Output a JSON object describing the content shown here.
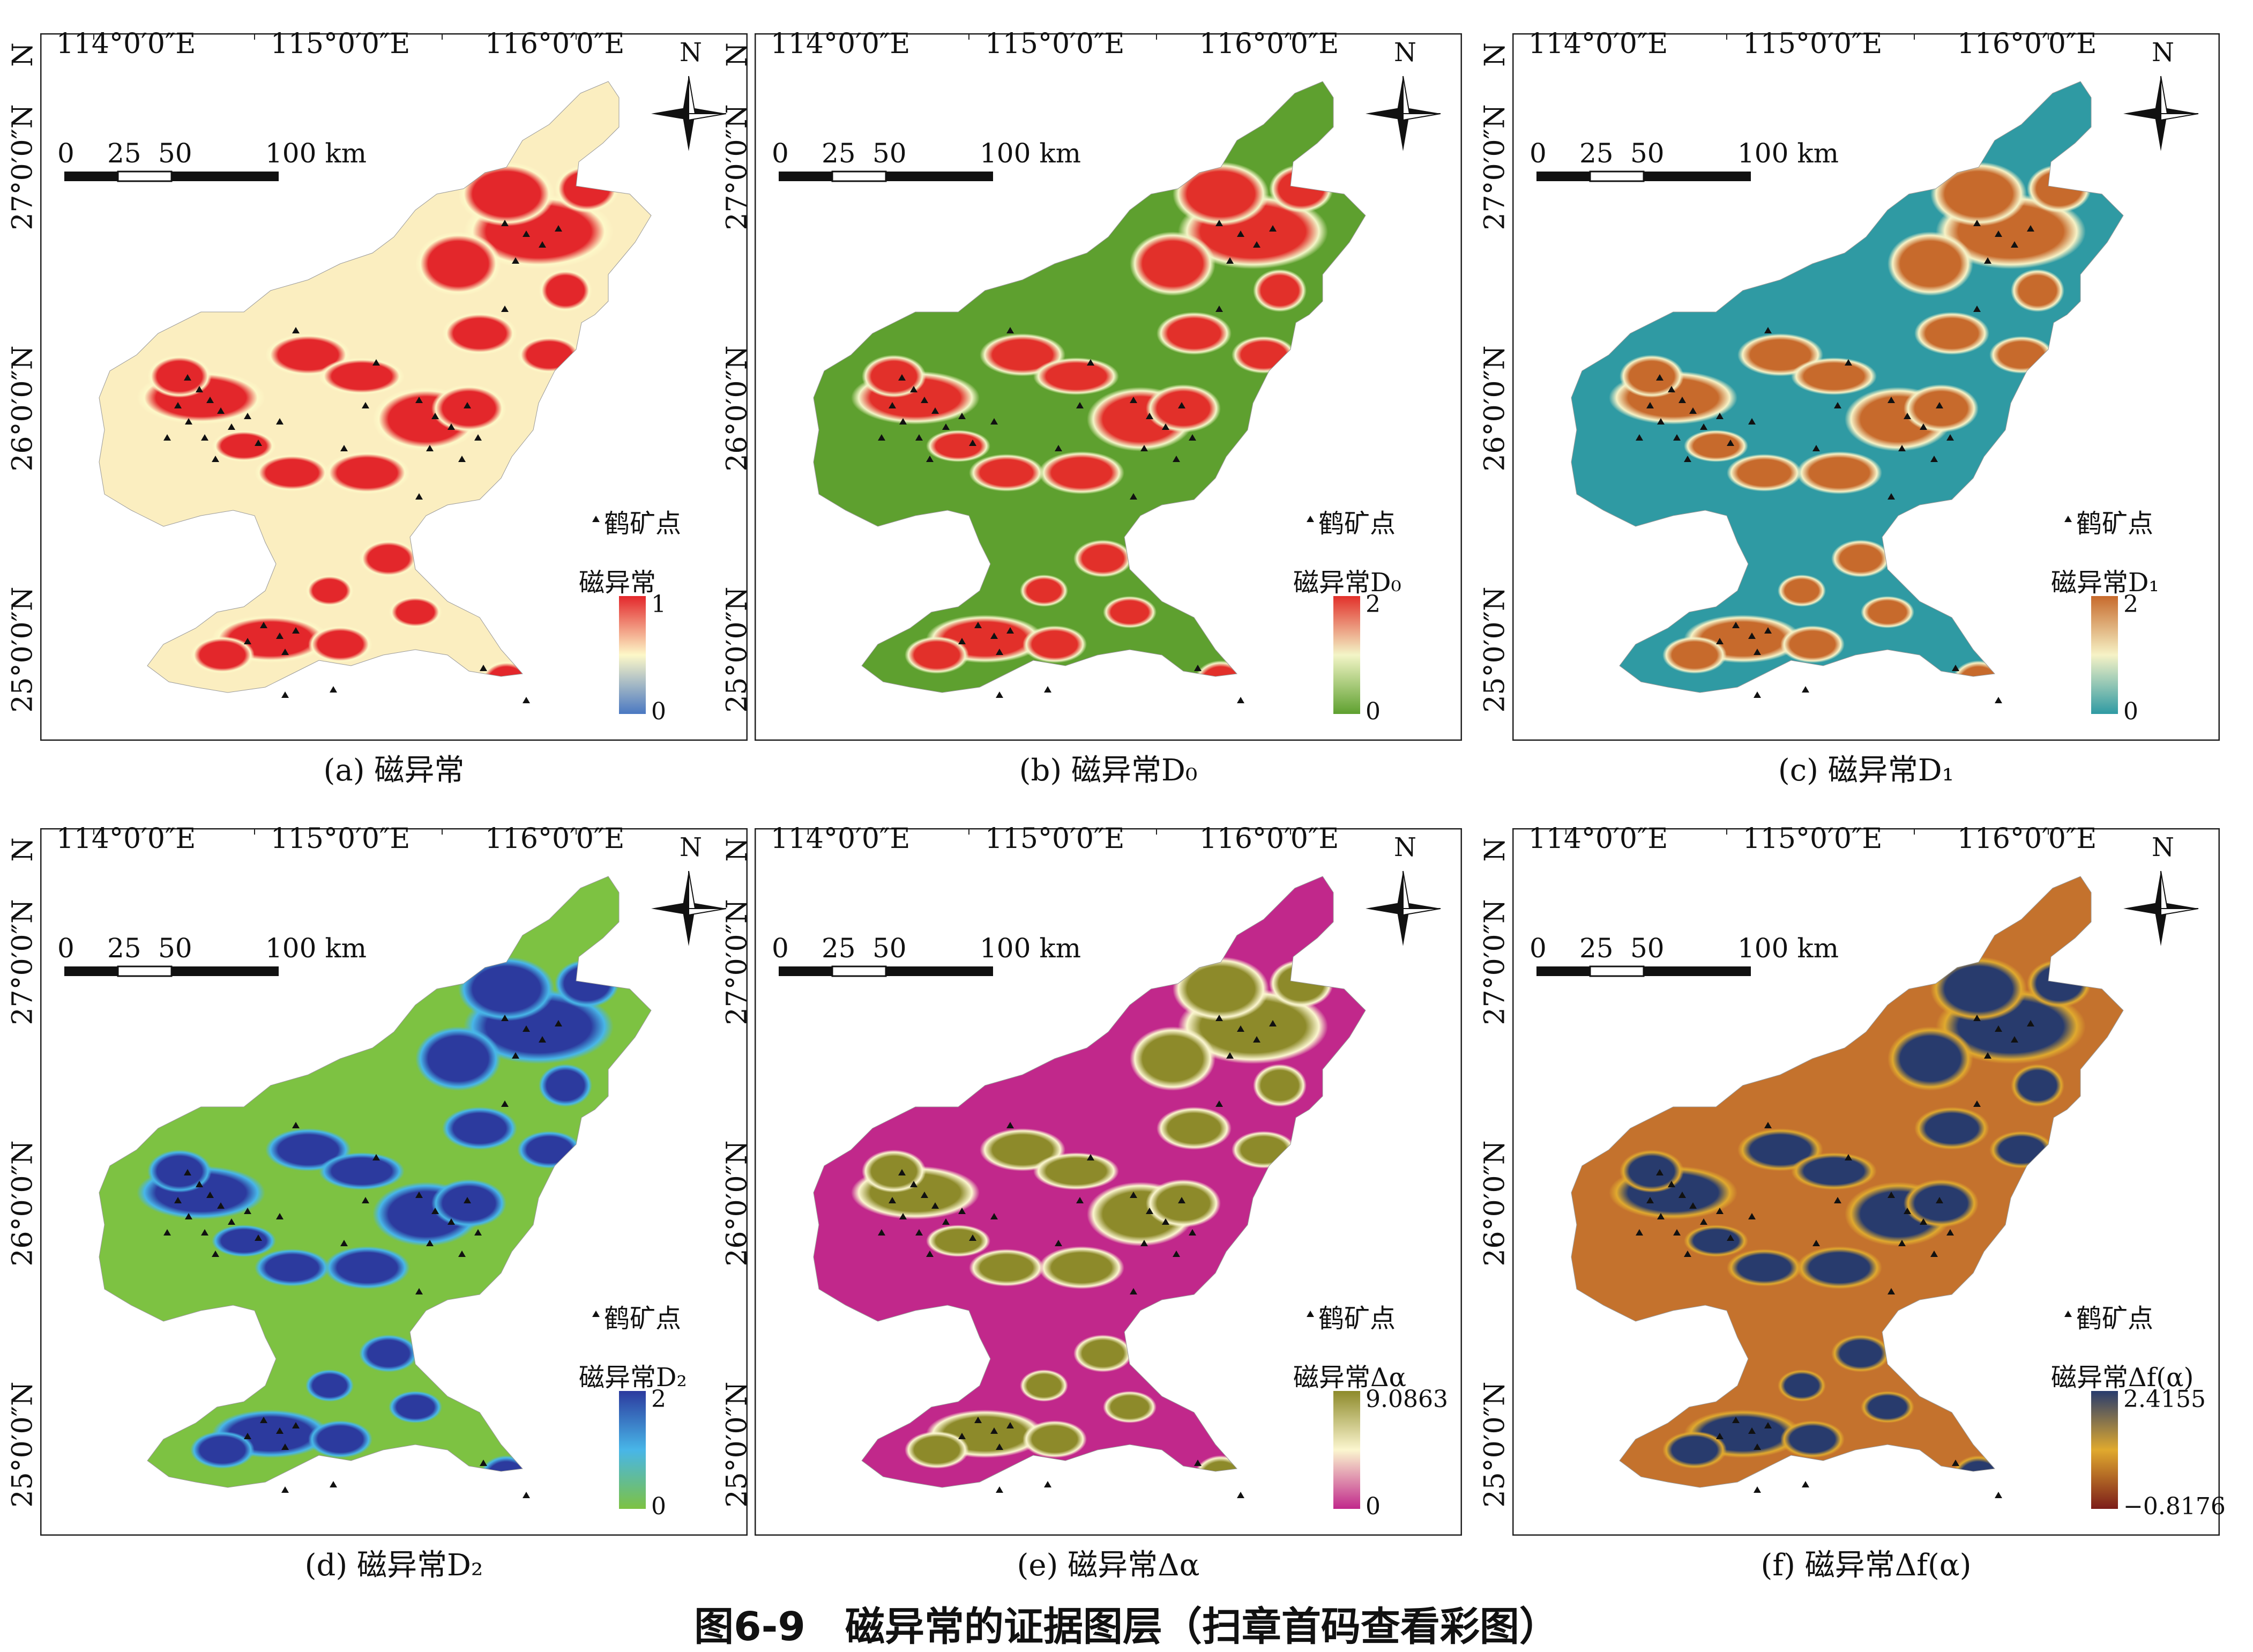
{
  "figure_title": "图6-9　磁异常的证据图层（扫章首码查看彩图）",
  "axes": {
    "lon_labels": [
      "114°0′0″E",
      "115°0′0″E",
      "116°0′0″E"
    ],
    "lat_labels": [
      "27°0′0″N",
      "26°0′0″N",
      "25°0′0″N"
    ],
    "lat_top_label": "N"
  },
  "scale_bar": {
    "labels": [
      "0",
      "25",
      "50",
      "100 km"
    ]
  },
  "north_label": "N",
  "mine_legend": "鹤矿点",
  "panels": [
    {
      "id": "a",
      "caption": "(a) 磁异常",
      "legend_title": "磁异常",
      "max": "1",
      "min": "0",
      "colors": {
        "low": "#4a78c2",
        "mid": "#fdf8c8",
        "high": "#e3272b",
        "base": "#fbeec0"
      }
    },
    {
      "id": "b",
      "caption": "(b) 磁异常D₀",
      "legend_title": "磁异常D₀",
      "max": "2",
      "min": "0",
      "colors": {
        "low": "#5ea02f",
        "mid": "#f3f5c7",
        "high": "#e2302a",
        "base": "#5ea02f"
      }
    },
    {
      "id": "c",
      "caption": "(c) 磁异常D₁",
      "legend_title": "磁异常D₁",
      "max": "2",
      "min": "0",
      "colors": {
        "low": "#2f9aa3",
        "mid": "#f6f2c6",
        "high": "#c76a2c",
        "base": "#2f9aa3"
      }
    },
    {
      "id": "d",
      "caption": "(d) 磁异常D₂",
      "legend_title": "磁异常D₂",
      "max": "2",
      "min": "0",
      "colors": {
        "low": "#7dc242",
        "mid": "#48b6e8",
        "high": "#2c3a9e",
        "base": "#7dc242"
      }
    },
    {
      "id": "e",
      "caption": "(e) 磁异常Δα",
      "legend_title": "磁异常Δα",
      "max": "9.0863",
      "min": "0",
      "colors": {
        "low": "#c1288b",
        "mid": "#fbf6cf",
        "high": "#8d8a2a",
        "base": "#c1288b"
      }
    },
    {
      "id": "f",
      "caption": "(f) 磁异常Δf(α)",
      "legend_title": "磁异常Δf(α)",
      "max": "2.4155",
      "min": "−0.8176",
      "colors": {
        "low": "#7c1d1a",
        "mid": "#e0a92e",
        "high": "#283b6d",
        "base": "#c4722d"
      }
    }
  ]
}
